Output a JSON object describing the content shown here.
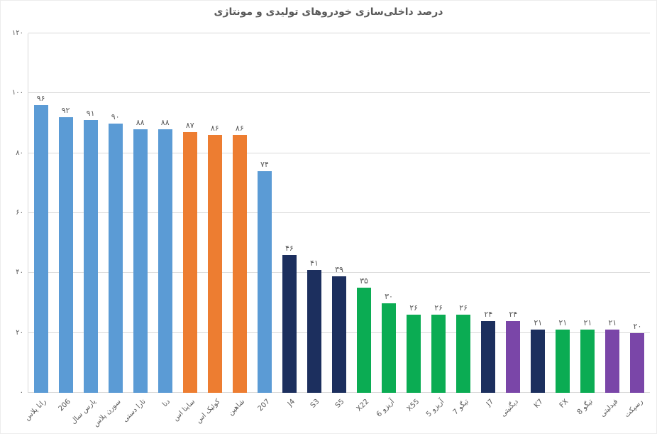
{
  "title": "درصد داخلی‌سازی خودروهای تولیدی و مونتاژی",
  "palette": {
    "blue": "#5B9BD5",
    "orange": "#ED7D31",
    "navy": "#1C2F5E",
    "green": "#0BAC53",
    "purple": "#7A46A8",
    "grid": "#D9D9D9",
    "text": "#595959"
  },
  "chart_data": {
    "type": "bar",
    "title": "درصد داخلی‌سازی خودروهای تولیدی و مونتاژی",
    "categories": [
      "رانا پلاس",
      "206",
      "پارس سال",
      "سورن پلاس",
      "تارا دستی",
      "دنا",
      "ساینا اس",
      "کوئیک اس",
      "شاهین",
      "207",
      "J4",
      "S3",
      "S5",
      "X22",
      "آریزو 6",
      "X55",
      "آریزو 5",
      "تیگو 7",
      "J7",
      "دیگنیتی",
      "K7",
      "FX",
      "تیگو 8",
      "فیدلیتی",
      "رسپکت"
    ],
    "values": [
      96,
      92,
      91,
      90,
      88,
      88,
      87,
      86,
      86,
      74,
      46,
      41,
      39,
      35,
      30,
      26,
      26,
      26,
      24,
      24,
      21,
      21,
      21,
      21,
      20
    ],
    "value_labels_fa": [
      "۹۶",
      "۹۲",
      "۹۱",
      "۹۰",
      "۸۸",
      "۸۸",
      "۸۷",
      "۸۶",
      "۸۶",
      "۷۴",
      "۴۶",
      "۴۱",
      "۳۹",
      "۳۵",
      "۳۰",
      "۲۶",
      "۲۶",
      "۲۶",
      "۲۴",
      "۲۴",
      "۲۱",
      "۲۱",
      "۲۱",
      "۲۱",
      "۲۰"
    ],
    "bar_color_keys": [
      "blue",
      "blue",
      "blue",
      "blue",
      "blue",
      "blue",
      "orange",
      "orange",
      "orange",
      "blue",
      "navy",
      "navy",
      "navy",
      "green",
      "green",
      "green",
      "green",
      "green",
      "navy",
      "purple",
      "navy",
      "green",
      "green",
      "purple",
      "purple"
    ],
    "xlabel": "",
    "ylabel": "",
    "ylim": [
      0,
      120
    ],
    "yticks": [
      0,
      20,
      40,
      60,
      80,
      100,
      120
    ],
    "ytick_labels_fa": [
      "۰",
      "۲۰",
      "۴۰",
      "۶۰",
      "۸۰",
      "۱۰۰",
      "۱۲۰"
    ],
    "grid": true,
    "legend": "none"
  }
}
